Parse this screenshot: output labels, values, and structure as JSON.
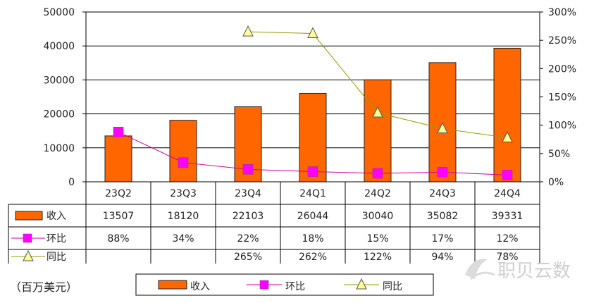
{
  "chart_data": {
    "type": "bar",
    "categories": [
      "23Q2",
      "23Q3",
      "23Q4",
      "24Q1",
      "24Q2",
      "24Q3",
      "24Q4"
    ],
    "series": [
      {
        "name": "收入",
        "type": "bar",
        "axis": "left",
        "values": [
          13507,
          18120,
          22103,
          26044,
          30040,
          35082,
          39331
        ],
        "labels": [
          "13507",
          "18120",
          "22103",
          "26044",
          "30040",
          "35082",
          "39331"
        ],
        "color": "#ff6600"
      },
      {
        "name": "环比",
        "type": "line",
        "axis": "right",
        "values": [
          88,
          34,
          22,
          18,
          15,
          17,
          12
        ],
        "labels": [
          "88%",
          "34%",
          "22%",
          "18%",
          "15%",
          "17%",
          "12%"
        ],
        "color": "#cc0099",
        "marker_color": "#ff00ff"
      },
      {
        "name": "同比",
        "type": "line",
        "axis": "right",
        "values": [
          null,
          null,
          265,
          262,
          122,
          94,
          78
        ],
        "labels": [
          "",
          "",
          "265%",
          "262%",
          "122%",
          "94%",
          "78%"
        ],
        "color": "#999900",
        "marker_color": "#ffff99"
      }
    ],
    "yleft": {
      "ylim": [
        0,
        50000
      ],
      "ticks": [
        "0",
        "10000",
        "20000",
        "30000",
        "40000",
        "50000"
      ]
    },
    "yright": {
      "ylim": [
        0,
        300
      ],
      "ticks": [
        "0%",
        "50%",
        "100%",
        "150%",
        "200%",
        "250%",
        "300%"
      ]
    },
    "grid": true,
    "data_table": true,
    "legend_position": "bottom",
    "unit_note": "（百万美元）",
    "watermark": "职贝云数"
  }
}
